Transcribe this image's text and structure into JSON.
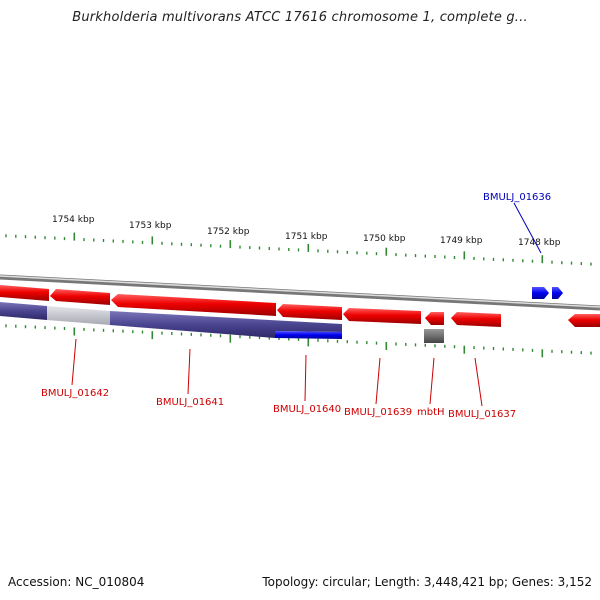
{
  "title": "Burkholderia multivorans ATCC 17616 chromosome 1, complete g...",
  "footer": {
    "accession": "Accession: NC_010804",
    "stats": "Topology: circular; Length: 3,448,421 bp; Genes: 3,152"
  },
  "scale_labels": [
    "1754 kbp",
    "1753 kbp",
    "1752 kbp",
    "1751 kbp",
    "1750 kbp",
    "1749 kbp",
    "1748 kbp"
  ],
  "genes": [
    {
      "label": "BMULJ_01642",
      "strand": "reverse"
    },
    {
      "label": "BMULJ_01641",
      "strand": "reverse"
    },
    {
      "label": "BMULJ_01640",
      "strand": "reverse"
    },
    {
      "label": "BMULJ_01639",
      "strand": "reverse"
    },
    {
      "label": "mbtH",
      "strand": "reverse"
    },
    {
      "label": "BMULJ_01637",
      "strand": "reverse"
    },
    {
      "label": "BMULJ_01636",
      "strand": "forward"
    }
  ],
  "colors": {
    "cds_red": "#ee0000",
    "cds_blue": "#0000ee",
    "track_purple": "#4a4590",
    "track_light": "#c8c8d0",
    "backbone": "#888888",
    "tick_green": "#338833"
  }
}
